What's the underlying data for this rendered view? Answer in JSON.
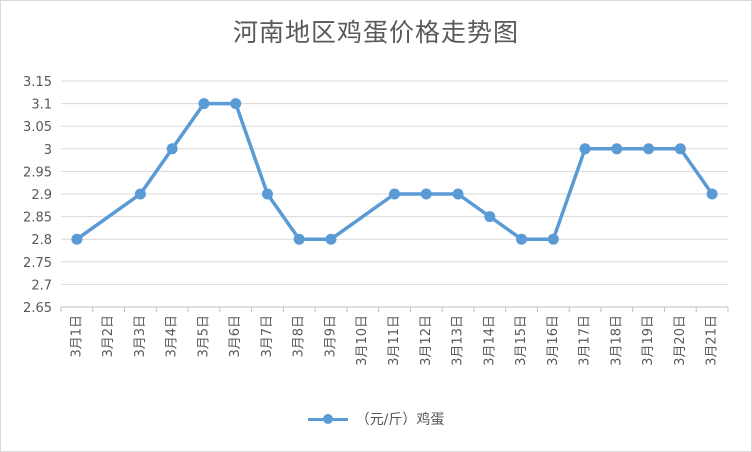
{
  "chart_data": {
    "type": "line",
    "title": "河南地区鸡蛋价格走势图",
    "xlabel": "",
    "ylabel": "",
    "categories": [
      "3月1日",
      "3月2日",
      "3月3日",
      "3月4日",
      "3月5日",
      "3月6日",
      "3月7日",
      "3月8日",
      "3月9日",
      "3月10日",
      "3月11日",
      "3月12日",
      "3月13日",
      "3月14日",
      "3月15日",
      "3月16日",
      "3月17日",
      "3月18日",
      "3月19日",
      "3月20日",
      "3月21日"
    ],
    "series": [
      {
        "name": "（元/斤）鸡蛋",
        "color": "#5b9bd5",
        "values": [
          2.8,
          null,
          2.9,
          3.0,
          3.1,
          3.1,
          2.9,
          2.8,
          2.8,
          null,
          2.9,
          2.9,
          2.9,
          2.85,
          2.8,
          2.8,
          3.0,
          3.0,
          3.0,
          3.0,
          2.9
        ]
      }
    ],
    "ylim": [
      2.65,
      3.15
    ],
    "yticks": [
      "2.65",
      "2.7",
      "2.75",
      "2.8",
      "2.85",
      "2.9",
      "2.95",
      "3",
      "3.05",
      "3.1",
      "3.15"
    ],
    "grid": true,
    "legend_position": "bottom"
  }
}
